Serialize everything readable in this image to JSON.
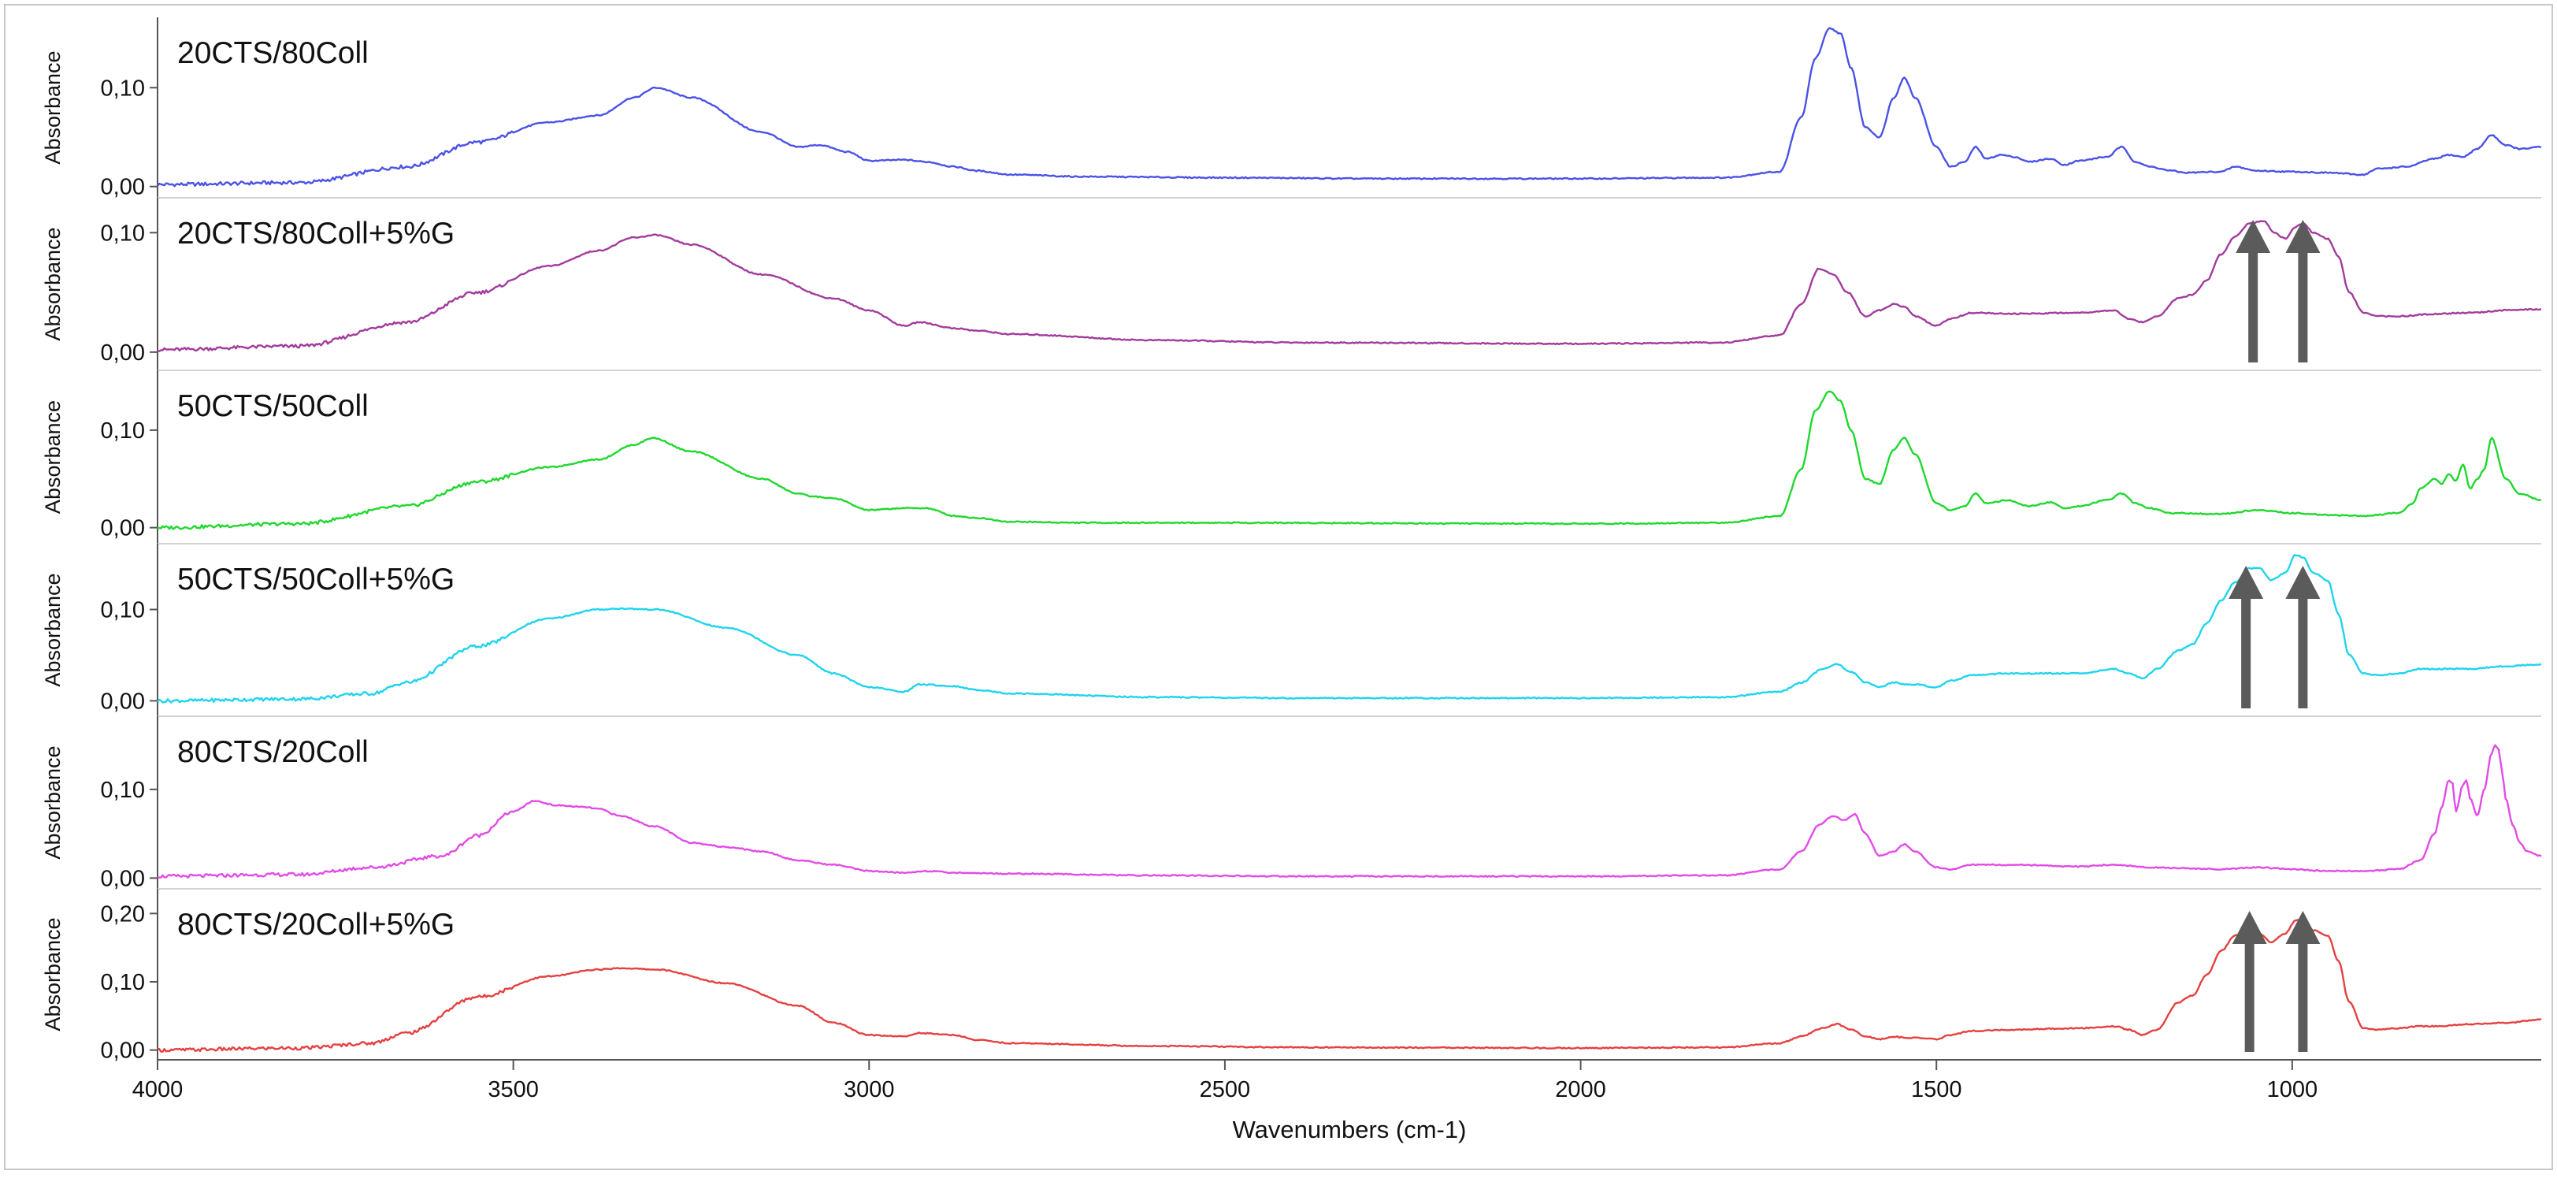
{
  "chart_data": {
    "type": "line",
    "xlabel": "Wavenumbers (cm-1)",
    "ylabel": "Absorbance",
    "x_reversed": true,
    "xlim": [
      4000,
      650
    ],
    "x_ticks": [
      4000,
      3500,
      3000,
      2500,
      2000,
      1500,
      1000
    ],
    "x_tick_labels": [
      "4000",
      "3500",
      "3000",
      "2500",
      "2000",
      "1500",
      "1000"
    ],
    "grid": false,
    "panels": [
      {
        "name": "20CTS/80Coll",
        "color": "#4b52e6",
        "ylim": [
          -0.005,
          0.16
        ],
        "y_ticks": [
          0.0,
          0.1
        ],
        "y_tick_labels": [
          "0,00",
          "0,10"
        ],
        "arrows": [],
        "x": [
          4000,
          3800,
          3650,
          3550,
          3450,
          3380,
          3330,
          3300,
          3250,
          3150,
          3100,
          3070,
          3030,
          3000,
          2950,
          2920,
          2880,
          2850,
          2800,
          2700,
          2500,
          2300,
          2000,
          1800,
          1720,
          1690,
          1670,
          1650,
          1635,
          1620,
          1600,
          1580,
          1560,
          1545,
          1530,
          1500,
          1480,
          1460,
          1445,
          1430,
          1410,
          1390,
          1370,
          1340,
          1320,
          1300,
          1260,
          1240,
          1220,
          1200,
          1170,
          1150,
          1100,
          1080,
          1050,
          1000,
          950,
          900,
          880,
          840,
          800,
          780,
          760,
          740,
          720,
          700,
          680,
          650
        ],
        "y": [
          0.002,
          0.004,
          0.02,
          0.045,
          0.065,
          0.072,
          0.09,
          0.1,
          0.09,
          0.055,
          0.04,
          0.042,
          0.035,
          0.026,
          0.027,
          0.025,
          0.02,
          0.016,
          0.012,
          0.01,
          0.009,
          0.008,
          0.008,
          0.009,
          0.015,
          0.07,
          0.13,
          0.16,
          0.155,
          0.12,
          0.06,
          0.05,
          0.09,
          0.11,
          0.09,
          0.04,
          0.02,
          0.025,
          0.04,
          0.028,
          0.032,
          0.03,
          0.025,
          0.028,
          0.022,
          0.026,
          0.03,
          0.04,
          0.025,
          0.02,
          0.016,
          0.014,
          0.015,
          0.02,
          0.016,
          0.015,
          0.014,
          0.012,
          0.018,
          0.02,
          0.028,
          0.032,
          0.03,
          0.038,
          0.052,
          0.042,
          0.038,
          0.04
        ]
      },
      {
        "name": "20CTS/80Coll+5%G",
        "color": "#a23b9c",
        "ylim": [
          -0.01,
          0.12
        ],
        "y_ticks": [
          0.0,
          0.1
        ],
        "y_tick_labels": [
          "0,00",
          "0,10"
        ],
        "arrows": [
          1055,
          985
        ],
        "x": [
          4000,
          3800,
          3650,
          3550,
          3450,
          3380,
          3330,
          3300,
          3250,
          3150,
          3050,
          3000,
          2950,
          2930,
          2880,
          2850,
          2800,
          2600,
          2400,
          2000,
          1800,
          1720,
          1690,
          1665,
          1645,
          1625,
          1600,
          1580,
          1560,
          1545,
          1530,
          1500,
          1480,
          1450,
          1400,
          1300,
          1250,
          1230,
          1210,
          1190,
          1160,
          1140,
          1120,
          1100,
          1080,
          1060,
          1040,
          1025,
          1010,
          995,
          985,
          970,
          950,
          935,
          920,
          900,
          880,
          850,
          800,
          750,
          700,
          650
        ],
        "y": [
          0.002,
          0.005,
          0.025,
          0.05,
          0.072,
          0.085,
          0.096,
          0.098,
          0.09,
          0.065,
          0.045,
          0.035,
          0.022,
          0.025,
          0.02,
          0.018,
          0.015,
          0.01,
          0.008,
          0.007,
          0.008,
          0.014,
          0.04,
          0.07,
          0.065,
          0.05,
          0.03,
          0.035,
          0.04,
          0.038,
          0.03,
          0.022,
          0.028,
          0.033,
          0.032,
          0.033,
          0.035,
          0.028,
          0.025,
          0.03,
          0.045,
          0.048,
          0.06,
          0.082,
          0.097,
          0.108,
          0.11,
          0.1,
          0.095,
          0.105,
          0.108,
          0.1,
          0.095,
          0.08,
          0.05,
          0.033,
          0.03,
          0.03,
          0.032,
          0.033,
          0.035,
          0.036
        ]
      },
      {
        "name": "50CTS/50Coll",
        "color": "#1fd82e",
        "ylim": [
          -0.01,
          0.15
        ],
        "y_ticks": [
          0.0,
          0.1
        ],
        "y_tick_labels": [
          "0,00",
          "0,10"
        ],
        "arrows": [],
        "x": [
          4000,
          3800,
          3650,
          3550,
          3450,
          3380,
          3330,
          3305,
          3250,
          3150,
          3100,
          3080,
          3050,
          3000,
          2950,
          2920,
          2880,
          2850,
          2800,
          2700,
          2500,
          2000,
          1800,
          1720,
          1690,
          1670,
          1650,
          1635,
          1620,
          1600,
          1580,
          1560,
          1545,
          1530,
          1500,
          1480,
          1460,
          1445,
          1430,
          1400,
          1370,
          1340,
          1320,
          1300,
          1260,
          1240,
          1220,
          1200,
          1170,
          1100,
          1050,
          1000,
          950,
          900,
          850,
          830,
          820,
          800,
          790,
          780,
          770,
          760,
          750,
          740,
          730,
          720,
          700,
          680,
          650
        ],
        "y": [
          0.0,
          0.004,
          0.022,
          0.047,
          0.062,
          0.07,
          0.085,
          0.092,
          0.078,
          0.05,
          0.035,
          0.032,
          0.03,
          0.018,
          0.02,
          0.02,
          0.012,
          0.01,
          0.006,
          0.005,
          0.005,
          0.004,
          0.005,
          0.012,
          0.06,
          0.12,
          0.14,
          0.13,
          0.1,
          0.05,
          0.045,
          0.08,
          0.092,
          0.075,
          0.025,
          0.018,
          0.022,
          0.035,
          0.025,
          0.028,
          0.022,
          0.026,
          0.02,
          0.022,
          0.028,
          0.035,
          0.025,
          0.02,
          0.015,
          0.014,
          0.018,
          0.015,
          0.013,
          0.012,
          0.015,
          0.025,
          0.04,
          0.05,
          0.045,
          0.055,
          0.048,
          0.065,
          0.04,
          0.05,
          0.06,
          0.092,
          0.05,
          0.035,
          0.028
        ]
      },
      {
        "name": "50CTS/50Coll+5%G",
        "color": "#1ed4ee",
        "ylim": [
          -0.01,
          0.16
        ],
        "y_ticks": [
          0.0,
          0.1
        ],
        "y_tick_labels": [
          "0,00",
          "0,10"
        ],
        "arrows": [
          1065,
          985
        ],
        "x": [
          4000,
          3800,
          3700,
          3650,
          3550,
          3450,
          3380,
          3350,
          3300,
          3200,
          3100,
          3050,
          3000,
          2950,
          2930,
          2880,
          2850,
          2800,
          2600,
          2400,
          2000,
          1800,
          1720,
          1690,
          1660,
          1640,
          1620,
          1600,
          1580,
          1560,
          1545,
          1530,
          1500,
          1480,
          1450,
          1400,
          1300,
          1250,
          1230,
          1210,
          1190,
          1160,
          1140,
          1120,
          1100,
          1080,
          1060,
          1045,
          1030,
          1010,
          995,
          985,
          970,
          950,
          935,
          920,
          900,
          880,
          850,
          820,
          800,
          750,
          700,
          650
        ],
        "y": [
          0.0,
          0.002,
          0.008,
          0.02,
          0.06,
          0.09,
          0.1,
          0.101,
          0.1,
          0.08,
          0.05,
          0.03,
          0.015,
          0.01,
          0.018,
          0.016,
          0.012,
          0.008,
          0.004,
          0.003,
          0.003,
          0.004,
          0.01,
          0.02,
          0.035,
          0.04,
          0.032,
          0.02,
          0.015,
          0.02,
          0.018,
          0.018,
          0.015,
          0.022,
          0.028,
          0.03,
          0.03,
          0.035,
          0.03,
          0.025,
          0.035,
          0.055,
          0.062,
          0.085,
          0.11,
          0.13,
          0.145,
          0.145,
          0.132,
          0.14,
          0.16,
          0.157,
          0.14,
          0.132,
          0.095,
          0.05,
          0.03,
          0.028,
          0.03,
          0.035,
          0.035,
          0.035,
          0.038,
          0.04
        ]
      },
      {
        "name": "80CTS/20Coll",
        "color": "#e24be6",
        "ylim": [
          -0.005,
          0.17
        ],
        "y_ticks": [
          0.0,
          0.1
        ],
        "y_tick_labels": [
          "0,00",
          "0,10"
        ],
        "arrows": [],
        "x": [
          4000,
          3800,
          3700,
          3600,
          3550,
          3500,
          3470,
          3440,
          3400,
          3380,
          3350,
          3300,
          3250,
          3200,
          3150,
          3100,
          3050,
          3000,
          2950,
          2920,
          2880,
          2800,
          2600,
          2400,
          2000,
          1800,
          1720,
          1690,
          1665,
          1645,
          1630,
          1615,
          1600,
          1580,
          1560,
          1545,
          1530,
          1500,
          1480,
          1450,
          1400,
          1300,
          1250,
          1200,
          1150,
          1100,
          1050,
          1000,
          950,
          900,
          850,
          820,
          800,
          790,
          780,
          775,
          770,
          760,
          755,
          750,
          740,
          730,
          720,
          715,
          710,
          705,
          700,
          690,
          680,
          670,
          650
        ],
        "y": [
          0.002,
          0.004,
          0.012,
          0.025,
          0.048,
          0.075,
          0.087,
          0.082,
          0.08,
          0.078,
          0.07,
          0.058,
          0.04,
          0.035,
          0.03,
          0.02,
          0.015,
          0.008,
          0.006,
          0.008,
          0.006,
          0.005,
          0.003,
          0.002,
          0.002,
          0.003,
          0.01,
          0.03,
          0.06,
          0.07,
          0.065,
          0.072,
          0.05,
          0.025,
          0.03,
          0.038,
          0.03,
          0.012,
          0.01,
          0.015,
          0.015,
          0.013,
          0.015,
          0.012,
          0.011,
          0.01,
          0.012,
          0.01,
          0.008,
          0.008,
          0.01,
          0.02,
          0.05,
          0.08,
          0.11,
          0.108,
          0.075,
          0.105,
          0.11,
          0.09,
          0.07,
          0.1,
          0.14,
          0.15,
          0.145,
          0.12,
          0.09,
          0.06,
          0.04,
          0.03,
          0.025
        ]
      },
      {
        "name": "80CTS/20Coll+5%G",
        "color": "#e54040",
        "ylim": [
          -0.005,
          0.22
        ],
        "y_ticks": [
          0.0,
          0.1,
          0.2
        ],
        "y_tick_labels": [
          "0,00",
          "0,10",
          "0,20"
        ],
        "arrows": [
          1060,
          985
        ],
        "x": [
          4000,
          3800,
          3700,
          3650,
          3550,
          3450,
          3380,
          3350,
          3300,
          3200,
          3100,
          3050,
          3000,
          2950,
          2930,
          2880,
          2850,
          2800,
          2600,
          2400,
          2000,
          1800,
          1720,
          1690,
          1660,
          1640,
          1620,
          1600,
          1580,
          1560,
          1545,
          1530,
          1500,
          1480,
          1450,
          1400,
          1300,
          1250,
          1230,
          1210,
          1190,
          1160,
          1140,
          1120,
          1100,
          1080,
          1060,
          1045,
          1030,
          1010,
          995,
          985,
          970,
          950,
          935,
          920,
          900,
          880,
          850,
          820,
          800,
          750,
          700,
          650
        ],
        "y": [
          0.0,
          0.003,
          0.01,
          0.025,
          0.078,
          0.108,
          0.118,
          0.12,
          0.118,
          0.098,
          0.065,
          0.04,
          0.022,
          0.02,
          0.025,
          0.022,
          0.015,
          0.01,
          0.006,
          0.004,
          0.003,
          0.004,
          0.01,
          0.02,
          0.032,
          0.038,
          0.03,
          0.02,
          0.016,
          0.02,
          0.018,
          0.018,
          0.016,
          0.022,
          0.028,
          0.03,
          0.032,
          0.035,
          0.03,
          0.022,
          0.03,
          0.07,
          0.08,
          0.11,
          0.145,
          0.168,
          0.175,
          0.17,
          0.158,
          0.17,
          0.19,
          0.19,
          0.175,
          0.168,
          0.13,
          0.07,
          0.032,
          0.03,
          0.032,
          0.035,
          0.035,
          0.038,
          0.04,
          0.045
        ]
      }
    ]
  }
}
